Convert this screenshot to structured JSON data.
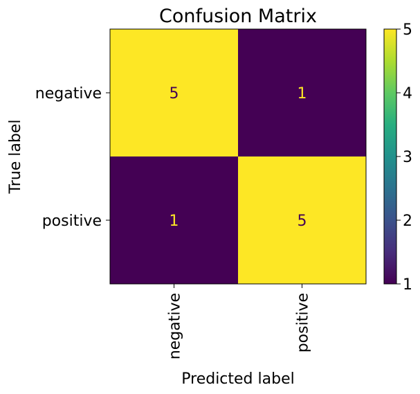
{
  "chart_data": {
    "type": "heatmap",
    "title": "Confusion Matrix",
    "xlabel": "Predicted label",
    "ylabel": "True label",
    "x_categories": [
      "negative",
      "positive"
    ],
    "y_categories": [
      "negative",
      "positive"
    ],
    "values": [
      [
        5,
        1
      ],
      [
        1,
        5
      ]
    ],
    "colorbar": {
      "min": 1,
      "max": 5,
      "ticks": [
        "1",
        "2",
        "3",
        "4",
        "5"
      ]
    },
    "colormap": "viridis",
    "cell_text_colors": {
      "on_high": "#440154",
      "on_low": "#fde725"
    },
    "colors": {
      "high": "#fde725",
      "low": "#440154"
    }
  }
}
